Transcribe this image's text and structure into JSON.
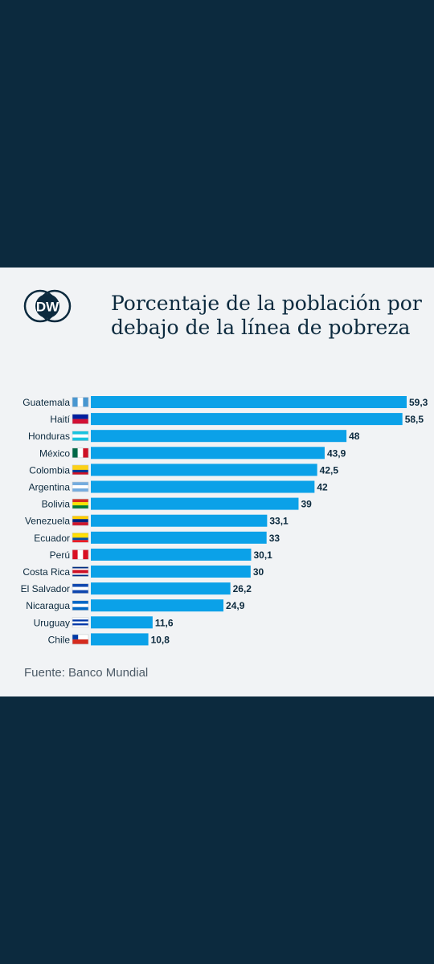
{
  "chart_data": {
    "type": "bar",
    "orientation": "horizontal",
    "title": "Porcentaje de la población por debajo de la línea de pobreza",
    "categories": [
      "Guatemala",
      "Haití",
      "Honduras",
      "México",
      "Colombia",
      "Argentina",
      "Bolivia",
      "Venezuela",
      "Ecuador",
      "Perú",
      "Costa Rica",
      "El Salvador",
      "Nicaragua",
      "Uruguay",
      "Chile"
    ],
    "values": [
      59.3,
      58.5,
      48,
      43.9,
      42.5,
      42,
      39,
      33.1,
      33,
      30.1,
      30,
      26.2,
      24.9,
      11.6,
      10.8
    ],
    "value_labels": [
      "59,3",
      "58,5",
      "48",
      "43,9",
      "42,5",
      "42",
      "39",
      "33,1",
      "33",
      "30,1",
      "30",
      "26,2",
      "24,9",
      "11,6",
      "10,8"
    ],
    "bar_color": "#0ba1e8",
    "xlim": [
      0,
      59.3
    ],
    "grid": false,
    "legend": "none"
  },
  "brand": {
    "logo_text": "DW",
    "logo_color": "#0c2a3e"
  },
  "source": "Fuente: Banco Mundial",
  "colors": {
    "background": "#0c2a3e",
    "card": "#f1f3f5",
    "text": "#0c2a3e"
  }
}
